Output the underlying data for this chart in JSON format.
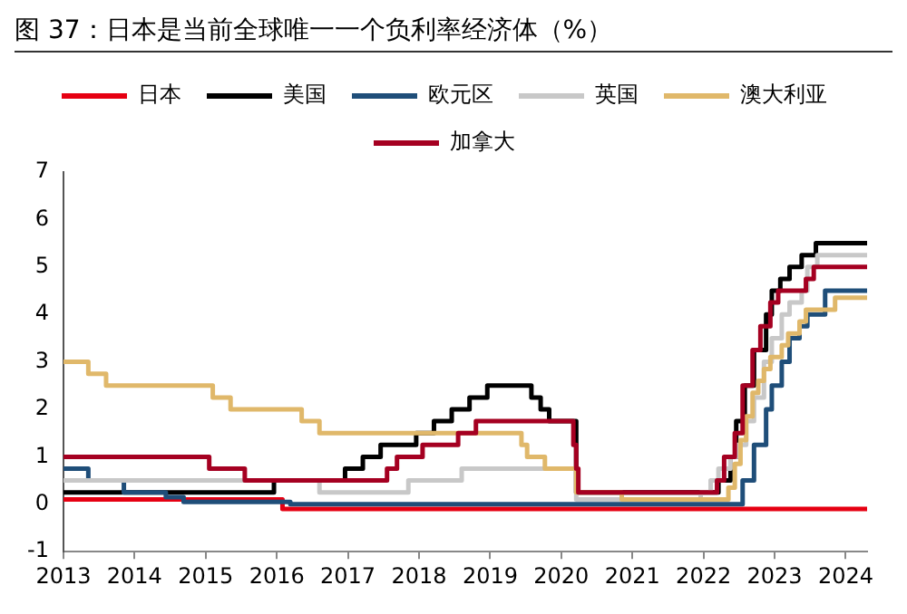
{
  "chart_data": {
    "type": "step",
    "title": "图 37：日本是当前全球唯一一个负利率经济体（%）",
    "xlim": [
      2013,
      2024.3
    ],
    "xticks": [
      2013,
      2014,
      2015,
      2016,
      2017,
      2018,
      2019,
      2020,
      2021,
      2022,
      2023,
      2024
    ],
    "ylim": [
      -1,
      7
    ],
    "yticks": [
      -1,
      0,
      1,
      2,
      3,
      4,
      5,
      6,
      7
    ],
    "grid": false,
    "legend": "top",
    "series": [
      {
        "name": "日本",
        "color": "#e60012",
        "x": [
          2013,
          2014.5,
          2016.08,
          2018,
          2020,
          2022,
          2024.3
        ],
        "values": [
          0.1,
          0.1,
          -0.1,
          -0.1,
          -0.1,
          -0.1,
          -0.1
        ]
      },
      {
        "name": "美国",
        "color": "#000000",
        "x": [
          2013,
          2015.96,
          2016.96,
          2017.21,
          2017.46,
          2017.96,
          2018.21,
          2018.46,
          2018.71,
          2018.96,
          2019.58,
          2019.71,
          2019.83,
          2020.21,
          2022.21,
          2022.38,
          2022.46,
          2022.58,
          2022.71,
          2022.88,
          2022.96,
          2023.08,
          2023.21,
          2023.38,
          2023.58,
          2024.3
        ],
        "values": [
          0.25,
          0.5,
          0.75,
          1.0,
          1.25,
          1.5,
          1.75,
          2.0,
          2.25,
          2.5,
          2.25,
          2.0,
          1.75,
          0.25,
          0.5,
          1.0,
          1.75,
          2.5,
          3.25,
          4.0,
          4.5,
          4.75,
          5.0,
          5.25,
          5.5,
          5.5
        ]
      },
      {
        "name": "欧元区",
        "color": "#1f4e79",
        "x": [
          2013,
          2013.35,
          2013.85,
          2014.44,
          2014.69,
          2016.19,
          2022.55,
          2022.71,
          2022.88,
          2022.96,
          2023.1,
          2023.21,
          2023.35,
          2023.46,
          2023.71,
          2024.3
        ],
        "values": [
          0.75,
          0.5,
          0.25,
          0.15,
          0.05,
          0,
          0.5,
          1.25,
          2.0,
          2.5,
          3.0,
          3.5,
          3.75,
          4.0,
          4.5,
          4.5
        ]
      },
      {
        "name": "英国",
        "color": "#c8c8c8",
        "x": [
          2013,
          2016.6,
          2017.85,
          2018.6,
          2020.21,
          2021.96,
          2022.1,
          2022.21,
          2022.38,
          2022.46,
          2022.6,
          2022.71,
          2022.85,
          2022.96,
          2023.1,
          2023.21,
          2023.38,
          2023.46,
          2023.6,
          2024.3
        ],
        "values": [
          0.5,
          0.25,
          0.5,
          0.75,
          0.1,
          0.25,
          0.5,
          0.75,
          1.0,
          1.25,
          1.75,
          2.25,
          3.0,
          3.5,
          4.0,
          4.25,
          4.5,
          5.0,
          5.25,
          5.25
        ]
      },
      {
        "name": "澳大利亚",
        "color": "#e0b86a",
        "x": [
          2013,
          2013.35,
          2013.6,
          2015.1,
          2015.35,
          2016.35,
          2016.6,
          2019.44,
          2019.52,
          2019.77,
          2020.21,
          2020.85,
          2022.35,
          2022.44,
          2022.52,
          2022.6,
          2022.69,
          2022.77,
          2022.85,
          2022.94,
          2023.1,
          2023.19,
          2023.35,
          2023.44,
          2023.85,
          2024.3
        ],
        "values": [
          3.0,
          2.75,
          2.5,
          2.25,
          2.0,
          1.75,
          1.5,
          1.25,
          1.0,
          0.75,
          0.25,
          0.1,
          0.35,
          0.85,
          1.35,
          1.85,
          2.35,
          2.6,
          2.85,
          3.1,
          3.35,
          3.6,
          3.85,
          4.1,
          4.35,
          4.35
        ]
      },
      {
        "name": "加拿大",
        "color": "#a50021",
        "x": [
          2013,
          2015.05,
          2015.55,
          2017.55,
          2017.69,
          2018.05,
          2018.55,
          2018.8,
          2020.17,
          2020.21,
          2020.24,
          2022.19,
          2022.29,
          2022.44,
          2022.55,
          2022.69,
          2022.8,
          2022.94,
          2023.05,
          2023.44,
          2023.55,
          2024.3
        ],
        "values": [
          1.0,
          0.75,
          0.5,
          0.75,
          1.0,
          1.25,
          1.5,
          1.75,
          1.25,
          0.75,
          0.25,
          0.5,
          1.0,
          1.5,
          2.5,
          3.25,
          3.75,
          4.25,
          4.5,
          4.75,
          5.0,
          5.0
        ]
      }
    ]
  }
}
